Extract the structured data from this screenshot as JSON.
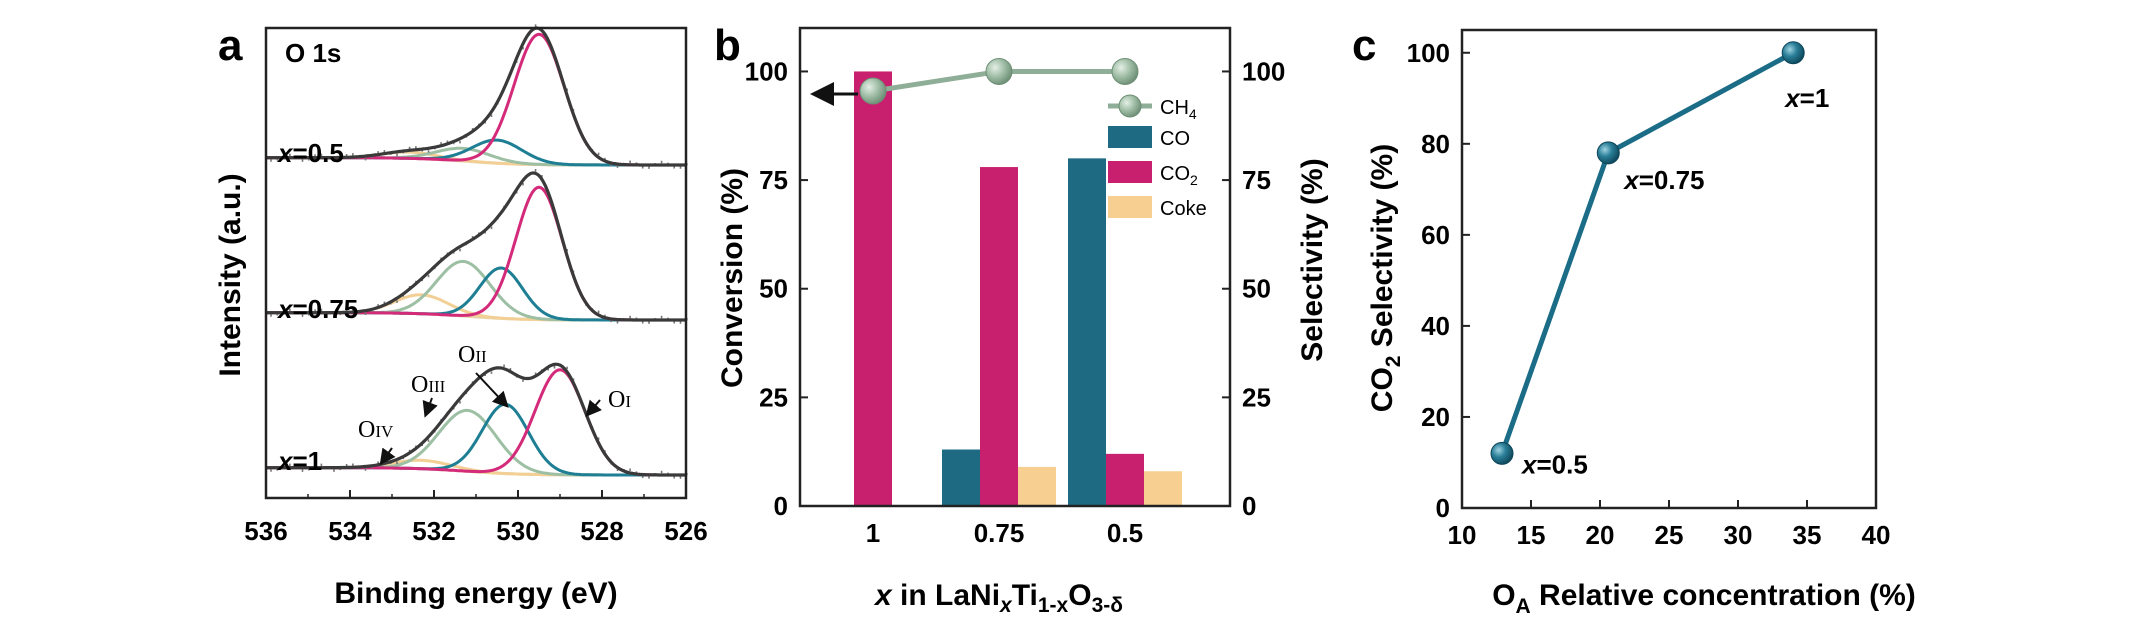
{
  "panels": {
    "a": {
      "letter": "a",
      "core_level_label": "O 1s",
      "xlabel": "Binding energy (eV)",
      "ylabel": "Intensity (a.u.)",
      "x_ticks": [
        "536",
        "534",
        "532",
        "530",
        "528",
        "526"
      ],
      "sample_labels": [
        {
          "var": "x",
          "rest": "=0.5"
        },
        {
          "var": "x",
          "rest": "=0.75"
        },
        {
          "var": "x",
          "rest": "=1"
        }
      ],
      "peak_labels": [
        {
          "main": "O",
          "sub": "IV"
        },
        {
          "main": "O",
          "sub": "III"
        },
        {
          "main": "O",
          "sub": "II"
        },
        {
          "main": "O",
          "sub": "I"
        }
      ]
    },
    "b": {
      "letter": "b",
      "ylabel_left": "Conversion (%)",
      "ylabel_right": "Selectivity (%)",
      "xlabel_parts": {
        "var": "x",
        "in": " in LaNi",
        "xsub": "x",
        "ti": "Ti",
        "sub2": "1-x",
        "o": "O",
        "sub3": "3-δ"
      },
      "left_ticks": [
        "0",
        "25",
        "50",
        "75",
        "100"
      ],
      "right_ticks": [
        "0",
        "25",
        "50",
        "75",
        "100"
      ],
      "legend": [
        {
          "name": "CH",
          "sub": "4",
          "color": "#8fae97"
        },
        {
          "name": "CO",
          "sub": "",
          "color": "#1d6a82"
        },
        {
          "name": "CO",
          "sub": "2",
          "color": "#c8206f"
        },
        {
          "name": "Coke",
          "sub": "",
          "color": "#f6cf91"
        }
      ]
    },
    "c": {
      "letter": "c",
      "ylabel_parts": {
        "a": "CO",
        "sub": "2",
        "b": " Selectivity (%)"
      },
      "xlabel_parts": {
        "a": "O",
        "sub": "A",
        "b": " Relative concentration (%)"
      },
      "x_ticks": [
        "10",
        "15",
        "20",
        "25",
        "30",
        "35",
        "40"
      ],
      "y_ticks": [
        "0",
        "20",
        "40",
        "60",
        "80",
        "100"
      ],
      "point_labels": [
        {
          "var": "x",
          "rest": "=0.5"
        },
        {
          "var": "x",
          "rest": "=0.75"
        },
        {
          "var": "x",
          "rest": "=1"
        }
      ]
    }
  },
  "chart_data": [
    {
      "type": "line",
      "panel": "a",
      "xlabel": "Binding energy (eV)",
      "ylabel": "Intensity (a.u.)",
      "xlim": [
        536,
        526
      ],
      "x_reversed": true,
      "colors": {
        "envelope": "#3a3a3a",
        "O_I": "#d42a7a",
        "O_II": "#1e7e93",
        "O_III": "#9dbfa3",
        "O_IV": "#f2cf95",
        "background": "#e8d4a6",
        "data": "#777777"
      },
      "samples": [
        {
          "label": "x=0.5",
          "peaks": [
            {
              "name": "O_I",
              "center": 529.5,
              "height": 0.62,
              "fwhm": 1.4
            },
            {
              "name": "O_II",
              "center": 530.5,
              "height": 0.11,
              "fwhm": 1.4
            },
            {
              "name": "O_III",
              "center": 531.3,
              "height": 0.06,
              "fwhm": 1.5
            },
            {
              "name": "O_IV",
              "center": 532.6,
              "height": 0.03,
              "fwhm": 1.5
            }
          ]
        },
        {
          "label": "x=0.75",
          "peaks": [
            {
              "name": "O_I",
              "center": 529.5,
              "height": 0.63,
              "fwhm": 1.3
            },
            {
              "name": "O_II",
              "center": 530.4,
              "height": 0.24,
              "fwhm": 1.2
            },
            {
              "name": "O_III",
              "center": 531.3,
              "height": 0.26,
              "fwhm": 1.5
            },
            {
              "name": "O_IV",
              "center": 532.3,
              "height": 0.09,
              "fwhm": 1.5
            }
          ]
        },
        {
          "label": "x=1",
          "peaks": [
            {
              "name": "O_I",
              "center": 529.0,
              "height": 0.5,
              "fwhm": 1.4
            },
            {
              "name": "O_II",
              "center": 530.3,
              "height": 0.33,
              "fwhm": 1.3
            },
            {
              "name": "O_III",
              "center": 531.2,
              "height": 0.29,
              "fwhm": 1.6
            },
            {
              "name": "O_IV",
              "center": 532.3,
              "height": 0.04,
              "fwhm": 1.6
            }
          ]
        }
      ]
    },
    {
      "type": "bar",
      "panel": "b",
      "categories": [
        "1",
        "0.75",
        "0.5"
      ],
      "xlabel": "x in LaNixTi1-xO3-δ",
      "ylabel": "Conversion (%)",
      "ylabel_right": "Selectivity (%)",
      "ylim": [
        0,
        110
      ],
      "series": [
        {
          "name": "CH4",
          "kind": "line",
          "axis": "left",
          "values": [
            95.5,
            100,
            100
          ],
          "color": "#8fae97"
        },
        {
          "name": "CO",
          "kind": "bar",
          "axis": "right",
          "values": [
            0,
            13,
            80
          ],
          "color": "#1d6a82"
        },
        {
          "name": "CO2",
          "kind": "bar",
          "axis": "right",
          "values": [
            100,
            78,
            12
          ],
          "color": "#c8206f"
        },
        {
          "name": "Coke",
          "kind": "bar",
          "axis": "right",
          "values": [
            0,
            9,
            8
          ],
          "color": "#f6cf91"
        }
      ]
    },
    {
      "type": "line",
      "panel": "c",
      "xlabel": "OA Relative concentration (%)",
      "ylabel": "CO2 Selectivity (%)",
      "xlim": [
        10,
        40
      ],
      "ylim": [
        0,
        105
      ],
      "color": "#1b6c87",
      "x": [
        12.9,
        20.6,
        34.0
      ],
      "y": [
        12,
        78,
        100
      ],
      "labels": [
        "x=0.5",
        "x=0.75",
        "x=1"
      ]
    }
  ]
}
